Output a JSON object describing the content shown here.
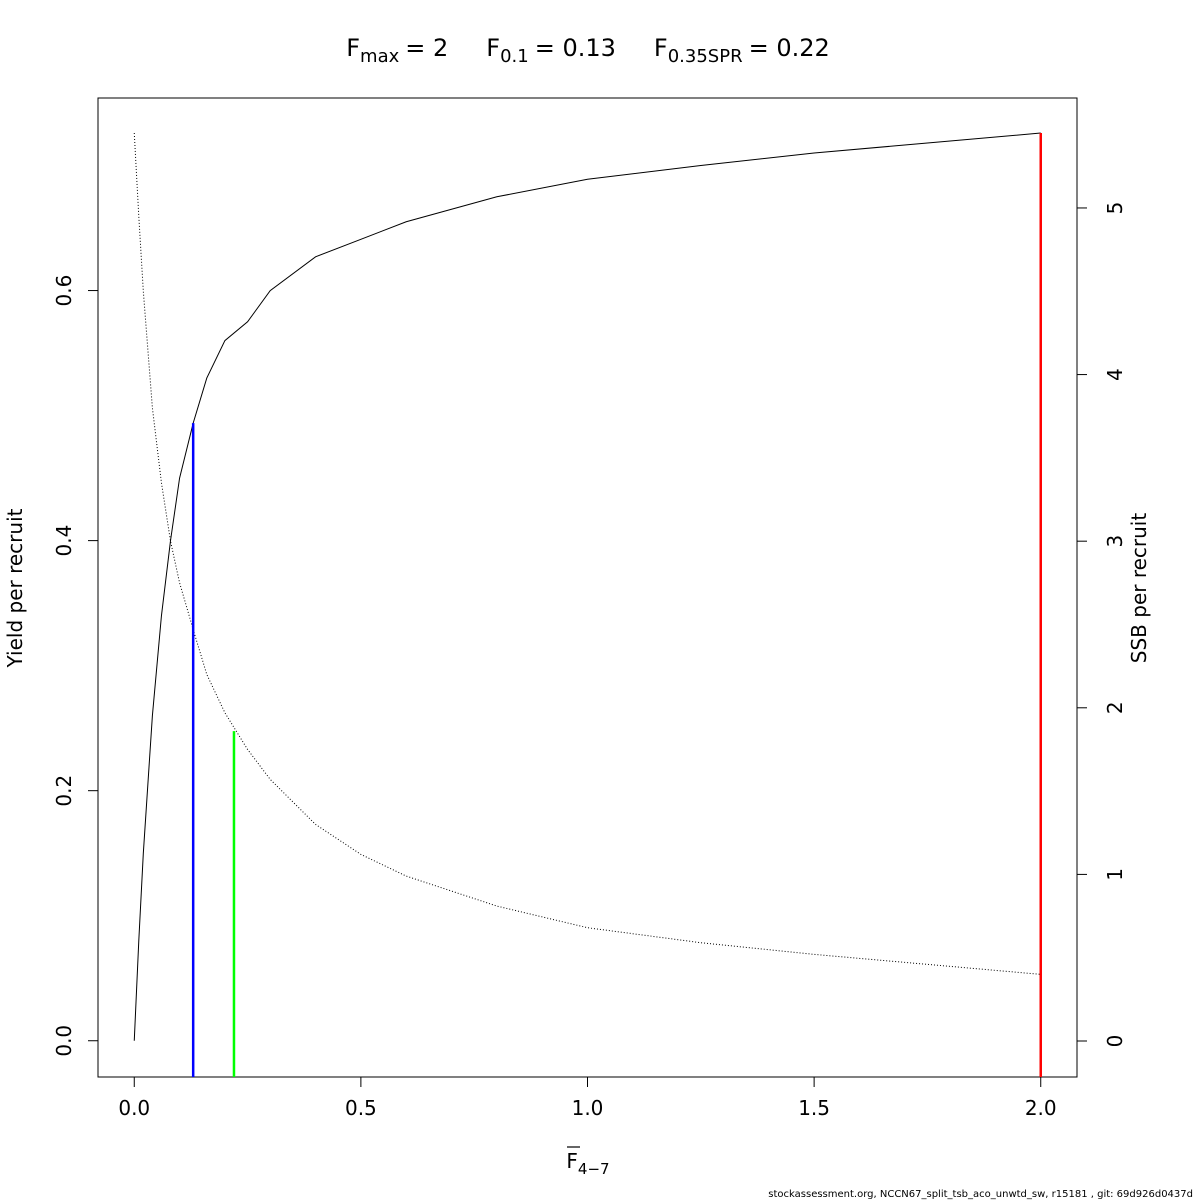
{
  "chart_data": {
    "type": "line",
    "title_parts": [
      {
        "symbol": "F",
        "subscript": "max",
        "value": "= 2"
      },
      {
        "symbol": "F",
        "subscript": "0.1",
        "value": "= 0.13"
      },
      {
        "symbol": "F",
        "subscript": "0.35SPR",
        "value": "= 0.22"
      }
    ],
    "xlabel": {
      "symbol": "F",
      "subscript": "4−7"
    },
    "ylabel": "Yield per recruit",
    "y2label": "SSB per recruit",
    "footer": "stockassessment.org, NCCN67_split_tsb_aco_unwtd_sw, r15181 , git: 69d926d0437d",
    "x": [
      0,
      0.01,
      0.02,
      0.04,
      0.06,
      0.08,
      0.1,
      0.13,
      0.16,
      0.2,
      0.25,
      0.3,
      0.4,
      0.5,
      0.6,
      0.8,
      1.0,
      1.25,
      1.5,
      1.75,
      2.0
    ],
    "series": [
      {
        "name": "Yield per recruit",
        "color": "#000000",
        "style": "solid",
        "values": [
          0,
          0.08,
          0.15,
          0.26,
          0.34,
          0.4,
          0.45,
          0.494,
          0.53,
          0.56,
          0.575,
          0.6,
          0.627,
          0.641,
          0.655,
          0.675,
          0.689,
          0.7,
          0.71,
          0.718,
          0.726
        ]
      },
      {
        "name": "SSB per recruit",
        "color": "#000000",
        "style": "dotted",
        "axis": "y2",
        "values": [
          5.45,
          4.95,
          4.5,
          3.8,
          3.35,
          3.0,
          2.75,
          2.47,
          2.2,
          1.97,
          1.75,
          1.57,
          1.3,
          1.12,
          0.99,
          0.81,
          0.68,
          0.59,
          0.52,
          0.46,
          0.4
        ]
      }
    ],
    "reference_lines": [
      {
        "x": 0.13,
        "y": 0.494,
        "color": "#0000ff"
      },
      {
        "x": 0.22,
        "y": 1.86,
        "axis": "y2",
        "color": "#00ff00"
      },
      {
        "x": 2.0,
        "y": 0.726,
        "color": "#ff0000"
      }
    ],
    "xlim": [
      -0.08,
      2.08
    ],
    "ylim": [
      -0.029,
      0.754
    ],
    "y2lim": [
      -0.216,
      5.66
    ],
    "xticks": [
      {
        "value": 0,
        "label": "0.0"
      },
      {
        "value": 0.5,
        "label": "0.5"
      },
      {
        "value": 1,
        "label": "1.0"
      },
      {
        "value": 1.5,
        "label": "1.5"
      },
      {
        "value": 2,
        "label": "2.0"
      }
    ],
    "yticks": [
      {
        "value": 0,
        "label": "0.0"
      },
      {
        "value": 0.2,
        "label": "0.2"
      },
      {
        "value": 0.4,
        "label": "0.4"
      },
      {
        "value": 0.6,
        "label": "0.6"
      }
    ],
    "y2ticks": [
      0,
      1,
      2,
      3,
      4,
      5
    ]
  }
}
